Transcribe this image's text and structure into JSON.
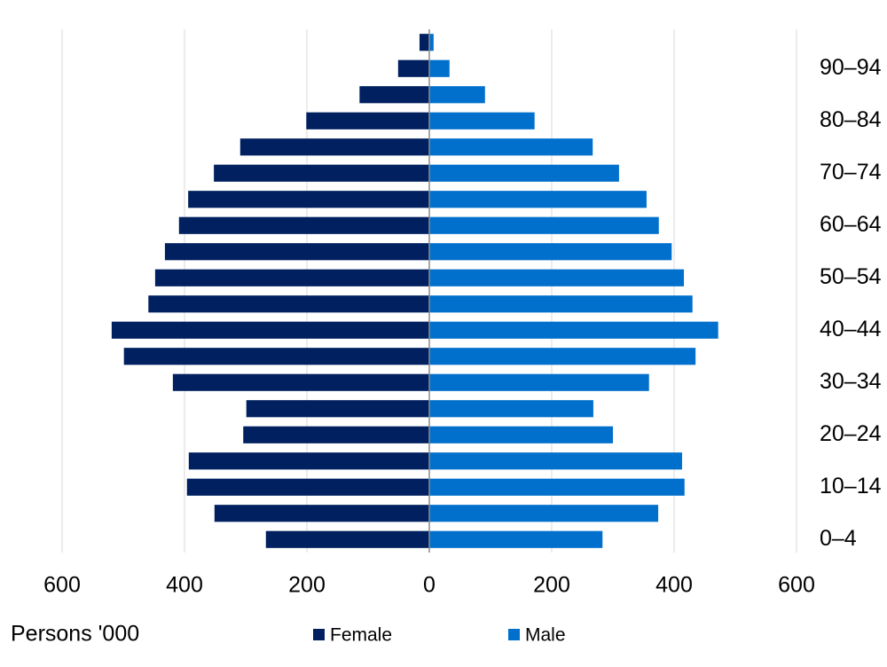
{
  "chart_data": {
    "type": "pyramid",
    "xlabel": "Persons '000",
    "categories": [
      "0–4",
      null,
      "10–14",
      null,
      "20–24",
      null,
      "30–34",
      null,
      "40–44",
      null,
      "50–54",
      null,
      "60–64",
      null,
      "70–74",
      null,
      "80–84",
      null,
      "90–94",
      null
    ],
    "series": [
      {
        "name": "Female",
        "color": "#002060",
        "values": [
          -267,
          -351,
          -396,
          -393,
          -304,
          -299,
          -419,
          -499,
          -519,
          -459,
          -448,
          -432,
          -409,
          -394,
          -352,
          -309,
          -201,
          -114,
          -51,
          -16
        ]
      },
      {
        "name": "Male",
        "color": "#0070cc",
        "values": [
          283,
          374,
          417,
          413,
          300,
          268,
          359,
          435,
          472,
          430,
          416,
          396,
          375,
          355,
          310,
          267,
          172,
          91,
          33,
          7
        ]
      }
    ],
    "xlim": [
      -600,
      600
    ],
    "xticks": [
      {
        "value": -600,
        "label": "600"
      },
      {
        "value": -400,
        "label": "400"
      },
      {
        "value": -200,
        "label": "200"
      },
      0,
      200,
      400,
      600
    ],
    "grid": true
  }
}
